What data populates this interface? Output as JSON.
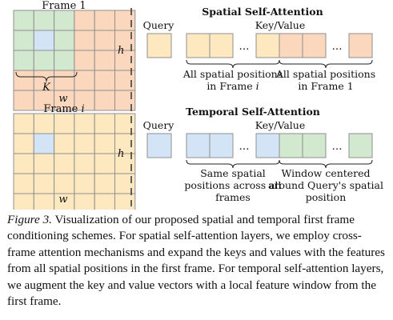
{
  "colors": {
    "green": "#d2e8cf",
    "orange": "#fbd7bd",
    "yellow": "#fde8bf",
    "blue": "#d4e4f7",
    "grid_stroke": "#8f8f8f",
    "bracket": "#222222"
  },
  "left": {
    "frame1_title": "Frame 1",
    "frame1_h": "h",
    "frame1_w": "w",
    "frame1_K": "K",
    "framei_title_prefix": "Frame ",
    "framei_title_var": "i",
    "framei_h": "h",
    "framei_w": "w"
  },
  "spatial": {
    "title": "Spatial Self-Attention",
    "query_label": "Query",
    "kv_label": "Key/Value",
    "ellipsis": "…",
    "brace1_line1": "All spatial positions",
    "brace1_line2_prefix": "in Frame ",
    "brace1_line2_var": "i",
    "brace2_line1": "All spatial positions",
    "brace2_line2": "in Frame 1"
  },
  "temporal": {
    "title": "Temporal Self-Attention",
    "query_label": "Query",
    "kv_label": "Key/Value",
    "ellipsis": "…",
    "brace1_line1": "Same spatial",
    "brace1_line2": "positions across all",
    "brace1_line3": "frames",
    "brace2_line1": "Window centered",
    "brace2_line2": "around Query's spatial",
    "brace2_line3": "position"
  },
  "caption": {
    "label": "Figure 3.",
    "text": " Visualization of our proposed spatial and temporal first frame conditioning schemes. For spatial self-attention layers, we employ cross-frame attention mechanisms and expand the keys and values with the features from all spatial positions in the first frame. For temporal self-attention layers, we augment the key and value vectors with a local feature window from the first frame."
  }
}
